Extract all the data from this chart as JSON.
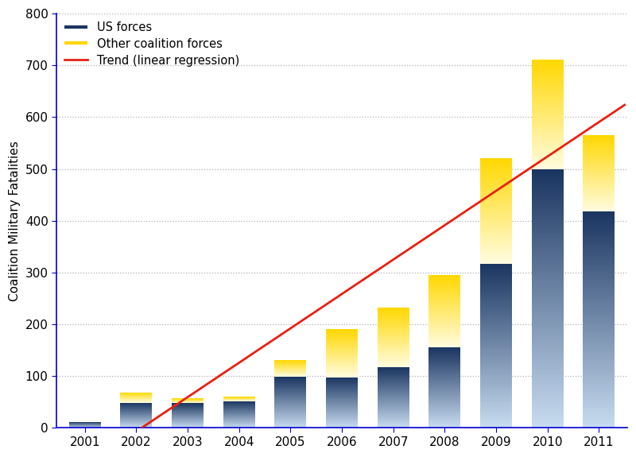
{
  "years": [
    2001,
    2002,
    2003,
    2004,
    2005,
    2006,
    2007,
    2008,
    2009,
    2010,
    2011
  ],
  "us_forces": [
    12,
    49,
    48,
    52,
    99,
    98,
    117,
    155,
    317,
    499,
    418
  ],
  "other_forces": [
    0,
    20,
    9,
    8,
    32,
    93,
    115,
    140,
    204,
    212,
    148
  ],
  "totals": [
    12,
    69,
    57,
    60,
    131,
    191,
    232,
    295,
    521,
    711,
    566
  ],
  "ylabel": "Coalition Military Fatalities",
  "ylim": [
    0,
    800
  ],
  "yticks": [
    0,
    100,
    200,
    300,
    400,
    500,
    600,
    700,
    800
  ],
  "legend_us": "US forces",
  "legend_other": "Other coalition forces",
  "legend_trend": "Trend (linear regression)",
  "us_color_top": "#1a3560",
  "us_color_bottom": "#c8dcf0",
  "other_color_top": "#ffd700",
  "other_color_bottom": "#fffce0",
  "trend_color": "#e82010",
  "bg_color": "#ffffff",
  "grid_color": "#b0b0b0",
  "axis_color": "#0000cc",
  "bar_width": 0.62
}
